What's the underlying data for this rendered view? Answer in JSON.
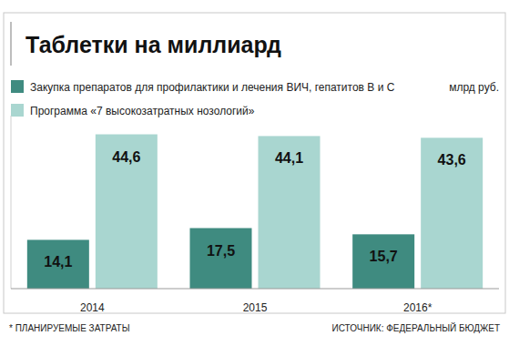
{
  "chart_data": {
    "type": "bar",
    "title": "Таблетки на миллиард",
    "ylabel": "млрд руб.",
    "categories": [
      "2014",
      "2015",
      "2016*"
    ],
    "series": [
      {
        "name": "Закупка препаратов для профилактики и лечения ВИЧ, гепатитов В и С",
        "color": "#3f8b80",
        "values": [
          14.1,
          17.5,
          15.7
        ],
        "value_labels": [
          "14,1",
          "17,5",
          "15,7"
        ]
      },
      {
        "name": "Программа «7 высокозатратных нозологий»",
        "color": "#a9d6d0",
        "values": [
          44.6,
          44.1,
          43.6
        ],
        "value_labels": [
          "44,6",
          "44,1",
          "43,6"
        ]
      }
    ],
    "ylim": [
      0,
      50
    ],
    "grid": false,
    "data_labels": true,
    "tick_labels": "x",
    "footnote": "* ПЛАНИРУЕМЫЕ ЗАТРАТЫ",
    "source": "ИСТОЧНИК: ФЕДЕРАЛЬНЫЙ БЮДЖЕТ"
  }
}
